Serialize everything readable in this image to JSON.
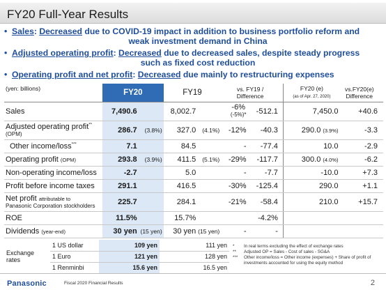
{
  "title": "FY20 Full-Year Results",
  "bullets": [
    {
      "head": "Sales",
      "headsep": ": ",
      "emph": "Decreased",
      "rest": " due to COVID-19 impact in addition to business portfolio reform and",
      "cont": "weak investment demand in China"
    },
    {
      "head": "Adjusted operating profit",
      "headsep": ": ",
      "emph": "Decreased",
      "rest": " due to decreased sales, despite steady progress",
      "cont": "such as fixed cost reduction"
    },
    {
      "head": "Operating profit and net profit",
      "headsep": ": ",
      "emph": "Decreased",
      "rest": " due mainly to restructuring expenses",
      "cont": ""
    }
  ],
  "table": {
    "unit": "(yen: billions)",
    "col_fy20": "FY20",
    "col_fy19": "FY19",
    "col_diff_1": "vs. FY19 /",
    "col_diff_2": "Difference",
    "col_fye_1": "FY20 (e)",
    "col_fye_2": "(as of Apr. 27, 2020)",
    "col_fyd_1": "vs.FY20(e)",
    "col_fyd_2": "Difference",
    "rows": [
      {
        "label": "Sales",
        "label2": "",
        "fy20": "7,490.6",
        "fy20p": "",
        "fy19": "8,002.7",
        "fy19p": "",
        "pct": "-6%",
        "pct2": "(-5%)*",
        "diff": "-512.1",
        "fye": "7,450.0",
        "fyep": "",
        "fyd": "+40.6"
      },
      {
        "label": "Adjusted operating profit",
        "sup": "**",
        "label2": "(OPM)",
        "fy20": "286.7",
        "fy20p": "(3.8%)",
        "fy19": "327.0",
        "fy19p": "(4.1%)",
        "pct": "-12%",
        "pct2": "",
        "diff": "-40.3",
        "fye": "290.0",
        "fyep": "(3.9%)",
        "fyd": "-3.3"
      },
      {
        "label": "Other income/loss",
        "sup": "***",
        "label2": "",
        "fy20": "7.1",
        "fy20p": "",
        "fy19": "84.5",
        "fy19p": "",
        "pct": "-",
        "pct2": "",
        "diff": "-77.4",
        "fye": "10.0",
        "fyep": "",
        "fyd": "-2.9"
      },
      {
        "label": "Operating profit",
        "label_small": "(OPM)",
        "label2": "",
        "fy20": "293.8",
        "fy20p": "(3.9%)",
        "fy19": "411.5",
        "fy19p": "(5.1%)",
        "pct": "-29%",
        "pct2": "",
        "diff": "-117.7",
        "fye": "300.0",
        "fyep": "(4.0%)",
        "fyd": "-6.2"
      },
      {
        "label": "Non-operating income/loss",
        "label2": "",
        "fy20": "-2.7",
        "fy20p": "",
        "fy19": "5.0",
        "fy19p": "",
        "pct": "-",
        "pct2": "",
        "diff": "-7.7",
        "fye": "-10.0",
        "fyep": "",
        "fyd": "+7.3"
      },
      {
        "label": "Profit before income taxes",
        "label2": "",
        "fy20": "291.1",
        "fy20p": "",
        "fy19": "416.5",
        "fy19p": "",
        "pct": "-30%",
        "pct2": "",
        "diff": "-125.4",
        "fye": "290.0",
        "fyep": "",
        "fyd": "+1.1"
      },
      {
        "label": "Net profit",
        "label_small": "attributable to",
        "label2": "Panasonic Corporation stockholders",
        "fy20": "225.7",
        "fy20p": "",
        "fy19": "284.1",
        "fy19p": "",
        "pct": "-21%",
        "pct2": "",
        "diff": "-58.4",
        "fye": "210.0",
        "fyep": "",
        "fyd": "+15.7"
      },
      {
        "label": "ROE",
        "label2": "",
        "fy20": "11.5%",
        "fy20p": "",
        "fy19": "15.7%",
        "fy19p": "",
        "pct": "",
        "pct2": "",
        "diff": "-4.2%",
        "fye": "",
        "fyep": "",
        "fyd": ""
      },
      {
        "label": "Dividends",
        "label_small": "(year-end)",
        "label2": "",
        "fy20": "30 yen",
        "fy20p": "(15 yen)",
        "fy19": "30 yen",
        "fy19p": "(15 yen)",
        "pct": "-",
        "pct2": "",
        "diff": "-",
        "fye": "",
        "fyep": "",
        "fyd": ""
      }
    ]
  },
  "exchange": {
    "label_1": "Exchange",
    "label_2": "rates",
    "rows": [
      {
        "currency": "1 US dollar",
        "fy20": "109 yen",
        "fy19": "111 yen"
      },
      {
        "currency": "1 Euro",
        "fy20": "121 yen",
        "fy19": "128 yen"
      },
      {
        "currency": "1 Renminbi",
        "fy20": "15.6 yen",
        "fy19": "16.5 yen"
      }
    ]
  },
  "notes": [
    {
      "mark": "*",
      "text": "In real terms excluding the effect of exchange rates"
    },
    {
      "mark": "**",
      "text": "Adjusted OP = Sales - Cost of sales - SG&A"
    },
    {
      "mark": "***",
      "text": "Other income/loss = Other income (expenses) + Share of profit of investments accounted for using the equity method"
    }
  ],
  "footer": {
    "logo": "Panasonic",
    "caption": "Fiscal 2020 Financial Results",
    "page": "2"
  },
  "colors": {
    "accent": "#2f6cb5",
    "highlight": "#dce8f6",
    "bullet_text": "#1f4e9c"
  }
}
